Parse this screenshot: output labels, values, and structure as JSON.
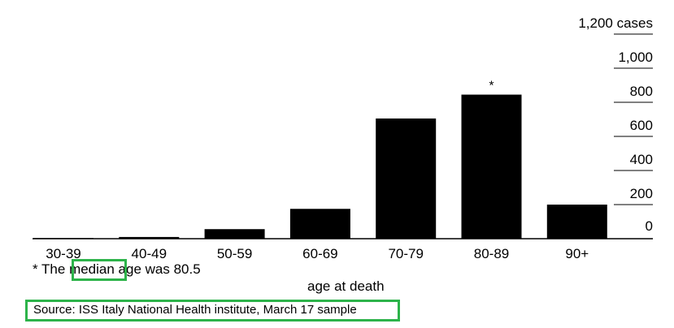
{
  "chart_data": {
    "type": "bar",
    "categories": [
      "30-39",
      "40-49",
      "50-59",
      "60-69",
      "70-79",
      "80-89",
      "90+"
    ],
    "values": [
      4,
      10,
      56,
      175,
      705,
      845,
      200
    ],
    "ylim": [
      0,
      1200
    ],
    "yticks": [
      0,
      200,
      400,
      600,
      800,
      1000,
      1200
    ],
    "ytick_labels": [
      "0",
      "200",
      "400",
      "600",
      "800",
      "1,000",
      "1,200 cases"
    ],
    "xlabel": "age at death",
    "ylabel": "",
    "bar_marker": {
      "category": "80-89",
      "text": "*"
    },
    "grid": true,
    "bar_color": "#000000",
    "axis_position": "right"
  },
  "footnote": {
    "prefix": "* The ",
    "highlight": "median",
    "suffix": " age was 80.5"
  },
  "source": "Source: ISS Italy National Health institute, March 17 sample",
  "highlight_color": "#2db34a"
}
